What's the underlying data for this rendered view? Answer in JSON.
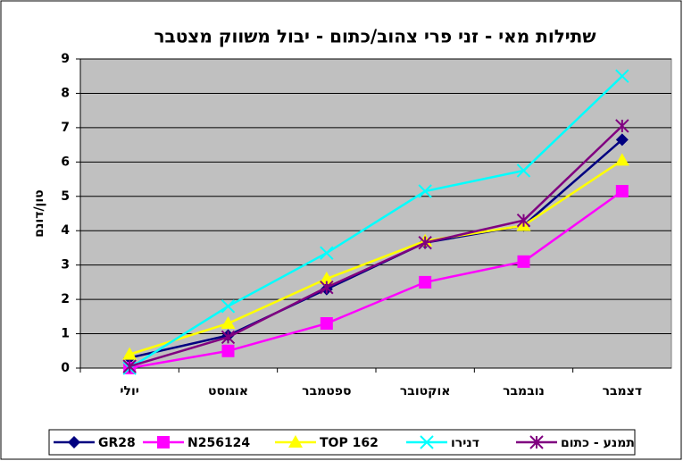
{
  "chart_data": {
    "type": "line",
    "title": "שתילות מאי - זני פרי צהוב/כתום - יבול משווק מצטבר",
    "y_label": "טון/דונם",
    "categories": [
      "יולי",
      "אוגוסט",
      "ספטמבר",
      "אוקטובר",
      "נובמבר",
      "דצמבר"
    ],
    "series": [
      {
        "name": "GR28",
        "color": "#000080",
        "marker": "diamond",
        "values": [
          0.3,
          0.95,
          2.3,
          3.65,
          4.15,
          6.65
        ]
      },
      {
        "name": "N256124",
        "color": "#ff00ff",
        "marker": "square",
        "values": [
          0,
          0.5,
          1.3,
          2.5,
          3.1,
          5.15
        ]
      },
      {
        "name": "TOP 162",
        "color": "#ffff00",
        "marker": "triangle",
        "values": [
          0.4,
          1.3,
          2.6,
          3.7,
          4.15,
          6.05
        ]
      },
      {
        "name": "דנירו",
        "color": "#00ffff",
        "marker": "x",
        "values": [
          0,
          1.8,
          3.35,
          5.15,
          5.75,
          8.5
        ]
      },
      {
        "name": "תמנע - כתום",
        "color": "#800080",
        "marker": "star",
        "values": [
          0.05,
          0.9,
          2.35,
          3.65,
          4.3,
          7.05
        ]
      }
    ],
    "ylim": [
      0,
      9
    ],
    "yticks": [
      0,
      1,
      2,
      3,
      4,
      5,
      6,
      7,
      8,
      9
    ],
    "grid": true,
    "legend": "bottom"
  }
}
